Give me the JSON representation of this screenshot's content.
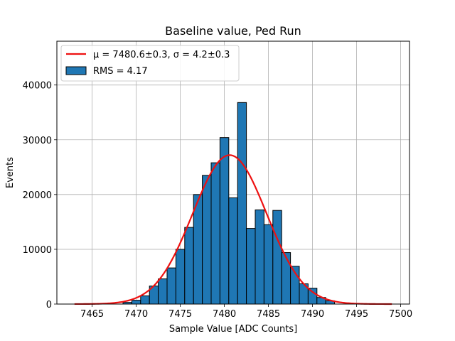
{
  "chart_data": {
    "type": "bar",
    "title": "Baseline value, Ped Run",
    "xlabel": "Sample Value [ADC Counts]",
    "ylabel": "Events",
    "xlim": [
      7461,
      7501
    ],
    "ylim": [
      0,
      48000
    ],
    "xticks": [
      7465,
      7470,
      7475,
      7480,
      7485,
      7490,
      7495,
      7500
    ],
    "yticks": [
      0,
      10000,
      20000,
      30000,
      40000
    ],
    "grid": true,
    "legend_position": "upper-left",
    "bin_width": 1,
    "bars": [
      {
        "x": 7469,
        "value": 300
      },
      {
        "x": 7470,
        "value": 700
      },
      {
        "x": 7471,
        "value": 1500
      },
      {
        "x": 7472,
        "value": 3300
      },
      {
        "x": 7473,
        "value": 4600
      },
      {
        "x": 7474,
        "value": 6600
      },
      {
        "x": 7475,
        "value": 10000
      },
      {
        "x": 7476,
        "value": 14000
      },
      {
        "x": 7477,
        "value": 20000
      },
      {
        "x": 7478,
        "value": 23500
      },
      {
        "x": 7479,
        "value": 25800
      },
      {
        "x": 7480,
        "value": 30400
      },
      {
        "x": 7481,
        "value": 19400
      },
      {
        "x": 7482,
        "value": 36800
      },
      {
        "x": 7483,
        "value": 13800
      },
      {
        "x": 7484,
        "value": 17200
      },
      {
        "x": 7485,
        "value": 14500
      },
      {
        "x": 7486,
        "value": 17100
      },
      {
        "x": 7487,
        "value": 9400
      },
      {
        "x": 7488,
        "value": 6900
      },
      {
        "x": 7489,
        "value": 3700
      },
      {
        "x": 7490,
        "value": 2900
      },
      {
        "x": 7491,
        "value": 1200
      },
      {
        "x": 7492,
        "value": 600
      }
    ],
    "fit": {
      "mu": 7480.6,
      "sigma": 4.2,
      "amplitude": 27200,
      "x_range": [
        7463,
        7499
      ]
    },
    "legend": {
      "fit_label": "μ = 7480.6±0.3, σ = 4.2±0.3",
      "hist_label": "RMS = 4.17"
    },
    "colors": {
      "bar_fill": "#1f77b4",
      "bar_edge": "#000000",
      "fit_line": "#ee1111",
      "grid": "#b0b0b0"
    }
  }
}
